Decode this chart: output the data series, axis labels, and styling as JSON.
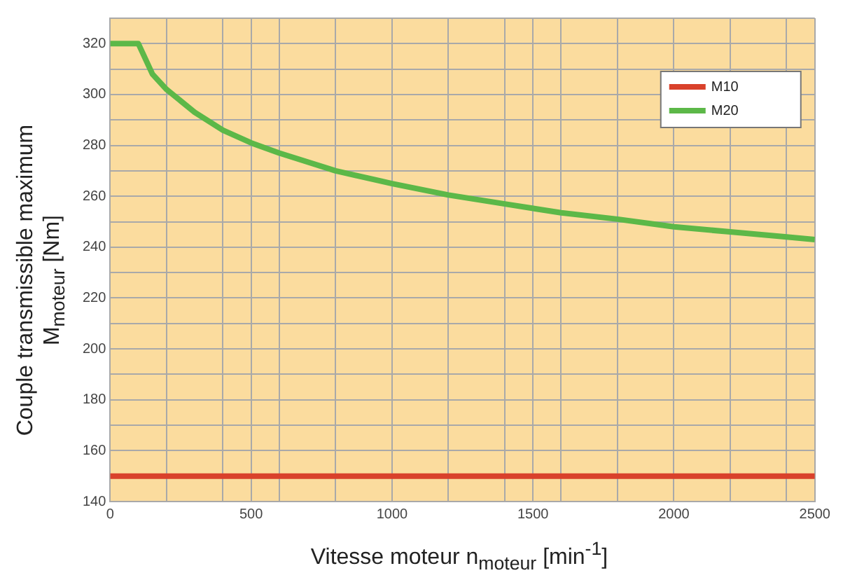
{
  "chart_data": {
    "type": "line",
    "xlabel": "Vitesse moteur n$_{moteur}$ [min$^{-1}$]",
    "ylabel": "Couple transmissible maximum\nM$_{moteur}$ [Nm]",
    "xlim": [
      0,
      2500
    ],
    "xticks": [
      0,
      {
        "value": 200,
        "label": null
      },
      {
        "value": 400,
        "label": null
      },
      500,
      {
        "value": 600,
        "label": null
      },
      {
        "value": 800,
        "label": null
      },
      1000,
      {
        "value": 1200,
        "label": null
      },
      {
        "value": 1400,
        "label": null
      },
      1500,
      {
        "value": 1600,
        "label": null
      },
      {
        "value": 1800,
        "label": null
      },
      2000,
      {
        "value": 2200,
        "label": null
      },
      {
        "value": 2400,
        "label": null
      },
      2500
    ],
    "ylim": [
      140,
      330
    ],
    "yticks": [
      140,
      {
        "value": 150,
        "label": null
      },
      160,
      {
        "value": 170,
        "label": null
      },
      180,
      {
        "value": 190,
        "label": null
      },
      200,
      {
        "value": 210,
        "label": null
      },
      220,
      {
        "value": 230,
        "label": null
      },
      240,
      {
        "value": 250,
        "label": null
      },
      260,
      {
        "value": 270,
        "label": null
      },
      280,
      {
        "value": 290,
        "label": null
      },
      300,
      {
        "value": 310,
        "label": null
      },
      320,
      {
        "value": 330,
        "label": null
      }
    ],
    "grid": true,
    "legend": "top right",
    "marker": "none",
    "line_style": "solid",
    "series": [
      {
        "name": "M10",
        "color": "#d9412b",
        "x": [
          0,
          2500
        ],
        "values": [
          150,
          150
        ]
      },
      {
        "name": "M20",
        "color": "#5cb848",
        "x": [
          0,
          100,
          150,
          200,
          300,
          400,
          500,
          600,
          800,
          1000,
          1200,
          1400,
          1600,
          1800,
          2000,
          2200,
          2400,
          2500
        ],
        "values": [
          320,
          320,
          308,
          302,
          293,
          286,
          281,
          277,
          270,
          265,
          260.5,
          257,
          253.5,
          251,
          248,
          246,
          244,
          243
        ]
      }
    ]
  }
}
